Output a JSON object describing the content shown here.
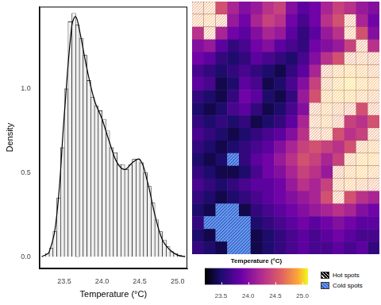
{
  "chart_data": [
    {
      "type": "histogram",
      "x_label": "Temperature (°C)",
      "y_label": "Density",
      "bins": [
        23.25,
        23.3,
        23.35,
        23.4,
        23.45,
        23.5,
        23.55,
        23.6,
        23.65,
        23.7,
        23.75,
        23.8,
        23.85,
        23.9,
        23.95,
        24,
        24.05,
        24.1,
        24.15,
        24.2,
        24.25,
        24.3,
        24.35,
        24.4,
        24.45,
        24.5,
        24.55,
        24.6,
        24.65,
        24.7,
        24.75,
        24.8,
        24.85,
        24.9,
        24.95,
        25,
        25.05,
        25.1
      ],
      "counts": [
        0.02,
        0.05,
        0.15,
        0.35,
        0.65,
        1.0,
        1.4,
        1.45,
        1.38,
        1.3,
        1.2,
        1.05,
        0.95,
        0.9,
        0.87,
        0.82,
        0.75,
        0.65,
        0.62,
        0.55,
        0.55,
        0.52,
        0.55,
        0.58,
        0.58,
        0.56,
        0.5,
        0.42,
        0.32,
        0.22,
        0.15,
        0.1,
        0.06,
        0.03,
        0.02,
        0.01,
        0.005
      ],
      "density_curve": {
        "x": [
          23.2,
          23.3,
          23.4,
          23.5,
          23.6,
          23.65,
          23.7,
          23.8,
          23.9,
          24.0,
          24.1,
          24.2,
          24.3,
          24.4,
          24.5,
          24.6,
          24.7,
          24.8,
          24.9,
          25.0,
          25.1
        ],
        "y": [
          0,
          0.03,
          0.25,
          0.85,
          1.38,
          1.43,
          1.35,
          1.12,
          0.93,
          0.82,
          0.68,
          0.56,
          0.52,
          0.56,
          0.58,
          0.45,
          0.25,
          0.1,
          0.04,
          0.01,
          0
        ]
      },
      "color": "#eeeeee",
      "xlim": [
        23.17,
        25.13
      ],
      "ylim": [
        -0.07,
        1.49
      ],
      "xticks": [
        23.5,
        {
          "value": 24,
          "label": "24.0"
        },
        24.5,
        {
          "value": 25,
          "label": "25.0"
        }
      ],
      "yticks": [
        {
          "value": 0,
          "label": "0.0"
        },
        {
          "value": 0.5,
          "label": "0.5"
        },
        {
          "value": 1,
          "label": "1.0"
        }
      ],
      "grid": false
    },
    {
      "type": "heatmap",
      "tick_labels": false,
      "cells": [
        [
          24.6,
          24.7,
          24.5,
          24.2,
          24.0,
          24.1,
          24.3,
          24.4,
          24.0,
          23.8,
          23.9,
          24.2,
          24.4,
          24.3,
          24.1,
          24.0
        ],
        [
          24.7,
          24.8,
          24.6,
          24.1,
          23.9,
          24.2,
          24.4,
          24.3,
          23.9,
          23.7,
          23.9,
          24.3,
          24.5,
          24.6,
          24.2,
          23.9
        ],
        [
          24.3,
          24.6,
          24.2,
          23.9,
          23.8,
          24.0,
          24.2,
          24.1,
          23.8,
          23.6,
          23.8,
          24.1,
          24.3,
          24.7,
          24.5,
          24.0
        ],
        [
          24.0,
          24.1,
          23.8,
          23.6,
          23.7,
          23.9,
          24.0,
          23.8,
          23.7,
          23.6,
          23.9,
          24.0,
          24.1,
          24.4,
          24.6,
          24.3
        ],
        [
          23.9,
          23.8,
          23.6,
          23.5,
          23.6,
          23.8,
          23.7,
          23.6,
          23.5,
          23.7,
          24.0,
          24.3,
          24.5,
          24.6,
          24.7,
          24.6
        ],
        [
          23.7,
          23.6,
          23.5,
          23.6,
          23.7,
          23.6,
          23.5,
          23.4,
          23.6,
          23.8,
          24.2,
          24.6,
          24.8,
          24.9,
          24.8,
          24.7
        ],
        [
          23.8,
          23.7,
          23.4,
          23.5,
          23.8,
          23.7,
          23.4,
          23.5,
          23.7,
          24.0,
          24.4,
          24.7,
          24.9,
          25.0,
          24.9,
          24.8
        ],
        [
          23.6,
          23.5,
          23.4,
          23.6,
          23.9,
          23.8,
          23.5,
          23.4,
          23.6,
          24.1,
          24.5,
          24.8,
          24.9,
          24.9,
          24.8,
          24.7
        ],
        [
          23.5,
          23.4,
          23.5,
          23.7,
          23.8,
          23.6,
          23.4,
          23.5,
          23.7,
          24.0,
          24.6,
          24.8,
          24.7,
          24.6,
          24.5,
          24.6
        ],
        [
          23.6,
          23.5,
          23.6,
          23.5,
          23.6,
          23.4,
          23.5,
          23.6,
          23.8,
          24.2,
          24.7,
          24.8,
          24.6,
          24.4,
          24.3,
          24.5
        ],
        [
          23.7,
          23.6,
          23.5,
          23.4,
          23.5,
          23.6,
          23.7,
          23.8,
          24.0,
          24.3,
          24.6,
          24.7,
          24.5,
          24.3,
          24.4,
          24.6
        ],
        [
          23.6,
          23.5,
          23.4,
          23.5,
          23.6,
          23.7,
          23.8,
          24.0,
          24.2,
          24.4,
          24.5,
          24.4,
          24.3,
          24.5,
          24.7,
          24.8
        ],
        [
          23.5,
          23.4,
          23.5,
          23.3,
          23.6,
          23.8,
          23.9,
          24.1,
          24.3,
          24.5,
          24.4,
          24.2,
          24.4,
          24.7,
          24.9,
          24.9
        ],
        [
          23.6,
          23.5,
          23.4,
          23.4,
          23.5,
          23.7,
          23.9,
          24.0,
          24.2,
          24.4,
          24.3,
          24.1,
          24.6,
          24.8,
          24.9,
          24.8
        ],
        [
          23.7,
          23.6,
          23.5,
          23.6,
          23.7,
          23.8,
          23.8,
          23.9,
          24.1,
          24.3,
          24.2,
          24.4,
          24.7,
          24.8,
          24.7,
          24.6
        ],
        [
          23.6,
          23.5,
          23.4,
          23.5,
          23.6,
          23.7,
          23.8,
          23.9,
          24.0,
          24.1,
          24.2,
          24.5,
          24.6,
          24.5,
          24.3,
          24.2
        ],
        [
          23.5,
          23.4,
          23.3,
          23.3,
          23.4,
          23.6,
          23.7,
          23.8,
          23.9,
          24.0,
          24.1,
          24.2,
          24.3,
          24.2,
          24.0,
          23.9
        ],
        [
          23.6,
          23.3,
          23.3,
          23.2,
          23.3,
          23.5,
          23.6,
          23.7,
          23.8,
          23.9,
          23.8,
          23.9,
          24.0,
          23.9,
          23.8,
          23.8
        ],
        [
          23.5,
          23.4,
          23.3,
          23.3,
          23.2,
          23.4,
          23.5,
          23.6,
          23.7,
          23.8,
          23.7,
          23.8,
          23.9,
          23.8,
          23.7,
          23.7
        ],
        [
          23.6,
          23.5,
          23.4,
          23.3,
          23.3,
          23.4,
          23.5,
          23.6,
          23.7,
          23.8,
          23.7,
          23.7,
          23.8,
          23.7,
          23.8,
          23.6
        ]
      ],
      "spots": [
        [
          1,
          1,
          0,
          0,
          0,
          0,
          0,
          0,
          0,
          0,
          0,
          0,
          0,
          0,
          0,
          0
        ],
        [
          1,
          1,
          1,
          0,
          0,
          0,
          0,
          0,
          0,
          0,
          0,
          0,
          0,
          1,
          0,
          0
        ],
        [
          0,
          1,
          0,
          0,
          0,
          0,
          0,
          0,
          0,
          0,
          0,
          0,
          0,
          1,
          0,
          0
        ],
        [
          0,
          0,
          0,
          0,
          0,
          0,
          0,
          0,
          0,
          0,
          0,
          0,
          0,
          0,
          1,
          0
        ],
        [
          0,
          0,
          0,
          0,
          0,
          0,
          0,
          0,
          0,
          0,
          0,
          0,
          0,
          1,
          1,
          1
        ],
        [
          0,
          0,
          0,
          0,
          0,
          0,
          0,
          0,
          0,
          0,
          0,
          1,
          1,
          1,
          1,
          1
        ],
        [
          0,
          0,
          0,
          0,
          0,
          0,
          0,
          0,
          0,
          0,
          0,
          1,
          1,
          1,
          1,
          1
        ],
        [
          0,
          0,
          0,
          0,
          0,
          0,
          0,
          0,
          0,
          0,
          0,
          1,
          1,
          1,
          1,
          1
        ],
        [
          0,
          0,
          0,
          0,
          0,
          0,
          0,
          0,
          0,
          0,
          1,
          1,
          1,
          1,
          0,
          1
        ],
        [
          0,
          0,
          0,
          0,
          0,
          0,
          0,
          0,
          0,
          0,
          1,
          1,
          1,
          0,
          0,
          0
        ],
        [
          0,
          0,
          0,
          0,
          0,
          0,
          0,
          0,
          0,
          0,
          1,
          1,
          0,
          0,
          0,
          1
        ],
        [
          0,
          0,
          0,
          0,
          0,
          0,
          0,
          0,
          0,
          0,
          0,
          0,
          0,
          0,
          1,
          1
        ],
        [
          0,
          0,
          0,
          -1,
          0,
          0,
          0,
          0,
          0,
          0,
          0,
          0,
          0,
          1,
          1,
          1
        ],
        [
          0,
          0,
          0,
          0,
          0,
          0,
          0,
          0,
          0,
          0,
          0,
          0,
          1,
          1,
          1,
          1
        ],
        [
          0,
          0,
          0,
          0,
          0,
          0,
          0,
          0,
          0,
          0,
          0,
          0,
          1,
          1,
          1,
          1
        ],
        [
          0,
          0,
          0,
          0,
          0,
          0,
          0,
          0,
          0,
          0,
          0,
          0,
          1,
          0,
          0,
          0
        ],
        [
          0,
          0,
          -1,
          -1,
          0,
          0,
          0,
          0,
          0,
          0,
          0,
          0,
          0,
          0,
          0,
          0
        ],
        [
          0,
          -1,
          -1,
          -1,
          -1,
          0,
          0,
          0,
          0,
          0,
          0,
          0,
          0,
          0,
          0,
          0
        ],
        [
          0,
          0,
          -1,
          -1,
          -1,
          0,
          0,
          0,
          0,
          0,
          0,
          0,
          0,
          0,
          0,
          0
        ],
        [
          0,
          0,
          0,
          -1,
          -1,
          0,
          0,
          0,
          0,
          0,
          0,
          0,
          0,
          0,
          0,
          0
        ]
      ],
      "spot_legend": [
        {
          "name": "Hot spots",
          "color": "#000000"
        },
        {
          "name": "Cold spots",
          "color": "#6495ed"
        }
      ],
      "colorbar": {
        "title": "Temperature (°C)",
        "range": [
          23.2,
          25.1
        ],
        "ticks": [
          23.5,
          {
            "value": 24,
            "label": "24.0"
          },
          24.5,
          {
            "value": 25,
            "label": "25.0"
          }
        ]
      }
    }
  ]
}
